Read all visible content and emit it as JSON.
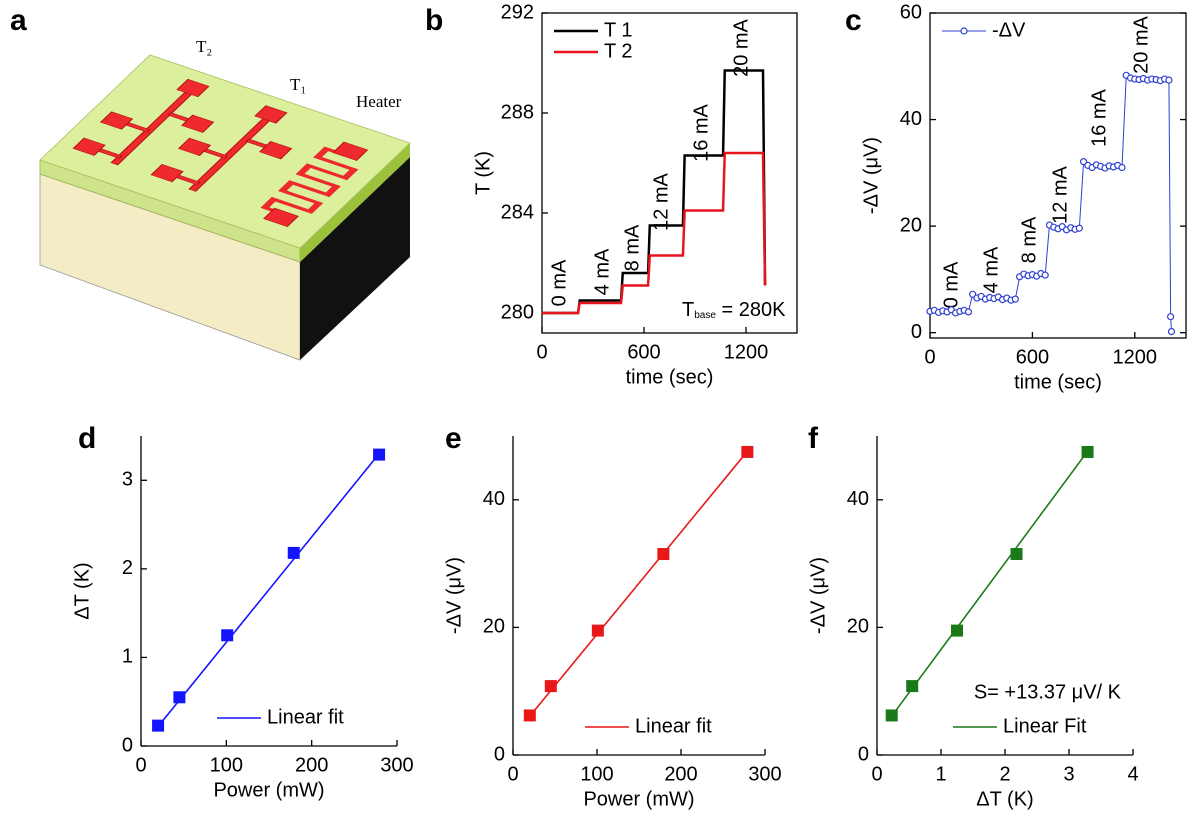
{
  "figure": {
    "panel_labels": [
      "a",
      "b",
      "c",
      "d",
      "e",
      "f"
    ],
    "diagram_labels": [
      "T₂",
      "T₁",
      "Heater"
    ]
  },
  "chart_data": [
    {
      "type": "line",
      "xlabel": "time (sec)",
      "ylabel": "T (K)",
      "x": [
        0,
        212,
        222,
        465,
        475,
        624,
        634,
        829,
        839,
        1065,
        1075,
        1300,
        1312
      ],
      "series": [
        {
          "name": "T 1",
          "color": "#000000",
          "values": [
            280.0,
            280.0,
            280.5,
            280.5,
            281.6,
            281.6,
            283.5,
            283.5,
            286.3,
            286.3,
            289.7,
            289.7,
            281.1
          ]
        },
        {
          "name": "T 2",
          "color": "#e8141c",
          "values": [
            280.0,
            280.0,
            280.4,
            280.4,
            281.1,
            281.1,
            282.3,
            282.3,
            284.1,
            284.1,
            286.4,
            286.4,
            281.1
          ]
        }
      ],
      "xlim": [
        0,
        1500
      ],
      "xticks": [
        0,
        600,
        1200
      ],
      "ylim": [
        279.2,
        292
      ],
      "yticks": [
        280,
        284,
        288,
        292
      ],
      "annotations": [
        "0 mA",
        "4 mA",
        "8 mA",
        "12 mA",
        "16 mA",
        "20 mA"
      ],
      "annotation_color": "#2e8b2e",
      "note": {
        "text": "T",
        "sub": "base",
        "rest": " = 280K"
      },
      "legend": "upper left"
    },
    {
      "type": "line",
      "markers": true,
      "xlabel": "time (sec)",
      "ylabel": "-ΔV (μV)",
      "x": [
        0,
        25,
        50,
        75,
        100,
        125,
        150,
        175,
        200,
        225,
        250,
        275,
        300,
        325,
        350,
        375,
        400,
        425,
        450,
        475,
        500,
        525,
        550,
        575,
        600,
        625,
        650,
        675,
        700,
        725,
        750,
        775,
        800,
        825,
        850,
        875,
        900,
        925,
        950,
        975,
        1000,
        1025,
        1050,
        1075,
        1100,
        1125,
        1150,
        1175,
        1200,
        1225,
        1250,
        1275,
        1300,
        1325,
        1350,
        1375,
        1400,
        1410,
        1415
      ],
      "series": [
        {
          "name": "-ΔV",
          "color": "#2f3fd0",
          "values": [
            4.0,
            4.2,
            3.8,
            4.1,
            3.9,
            4.3,
            3.7,
            4.0,
            4.2,
            3.9,
            7.2,
            6.5,
            6.8,
            6.3,
            6.6,
            6.4,
            6.7,
            6.2,
            6.5,
            6.1,
            6.3,
            10.5,
            11.0,
            10.7,
            10.9,
            10.6,
            11.1,
            10.8,
            20.2,
            19.8,
            19.5,
            19.9,
            19.3,
            19.7,
            19.4,
            19.6,
            32.1,
            31.4,
            31.0,
            31.5,
            31.2,
            30.9,
            31.3,
            31.1,
            31.4,
            31.0,
            48.3,
            47.8,
            47.6,
            47.5,
            47.7,
            47.4,
            47.6,
            47.5,
            47.3,
            47.6,
            47.4,
            3.0,
            0.2
          ]
        }
      ],
      "xlim": [
        0,
        1500
      ],
      "xticks": [
        0,
        600,
        1200
      ],
      "ylim": [
        -1,
        60
      ],
      "yticks": [
        0,
        20,
        40,
        60
      ],
      "annotations": [
        "0 mA",
        "4 mA",
        "8 mA",
        "12 mA",
        "16 mA",
        "20 mA"
      ],
      "annotation_color": "#2e8b2e",
      "legend": "upper left"
    },
    {
      "type": "scatter",
      "xlabel": "Power (mW)",
      "ylabel": "ΔT (K)",
      "x": [
        20,
        45,
        101,
        179,
        279
      ],
      "values": [
        0.23,
        0.55,
        1.25,
        2.18,
        3.29
      ],
      "color": "#1414ff",
      "fit": {
        "name": "Linear fit",
        "color": "#1414ff",
        "x": [
          20,
          279
        ],
        "values": [
          0.22,
          3.3
        ]
      },
      "xlim": [
        0,
        300
      ],
      "xticks": [
        0,
        100,
        200,
        300
      ],
      "ylim": [
        0,
        3.5
      ],
      "yticks": [
        0,
        1,
        2,
        3
      ],
      "legend": "lower right"
    },
    {
      "type": "scatter",
      "xlabel": "Power (mW)",
      "ylabel": "-ΔV (μV)",
      "x": [
        20,
        45,
        101,
        179,
        279
      ],
      "values": [
        6.2,
        10.8,
        19.5,
        31.5,
        47.5
      ],
      "color": "#e81818",
      "fit": {
        "name": "Linear fit",
        "color": "#e81818",
        "x": [
          20,
          279
        ],
        "values": [
          6.1,
          47.6
        ]
      },
      "xlim": [
        0,
        300
      ],
      "xticks": [
        0,
        100,
        200,
        300
      ],
      "ylim": [
        0,
        50
      ],
      "yticks": [
        0,
        20,
        40
      ],
      "legend": "lower right"
    },
    {
      "type": "scatter",
      "xlabel": "ΔT (K)",
      "ylabel": "-ΔV (μV)",
      "x": [
        0.23,
        0.55,
        1.25,
        2.18,
        3.29
      ],
      "values": [
        6.2,
        10.8,
        19.5,
        31.5,
        47.5
      ],
      "color": "#1a7a1a",
      "fit": {
        "name": "Linear Fit",
        "color": "#1a7a1a",
        "x": [
          0.23,
          3.29
        ],
        "values": [
          6.1,
          47.6
        ]
      },
      "annotation": "S= +13.37 μV/ K",
      "xlim": [
        0,
        4
      ],
      "xticks": [
        0,
        1,
        2,
        3,
        4
      ],
      "ylim": [
        0,
        50
      ],
      "yticks": [
        0,
        20,
        40
      ],
      "legend": "lower right"
    }
  ]
}
